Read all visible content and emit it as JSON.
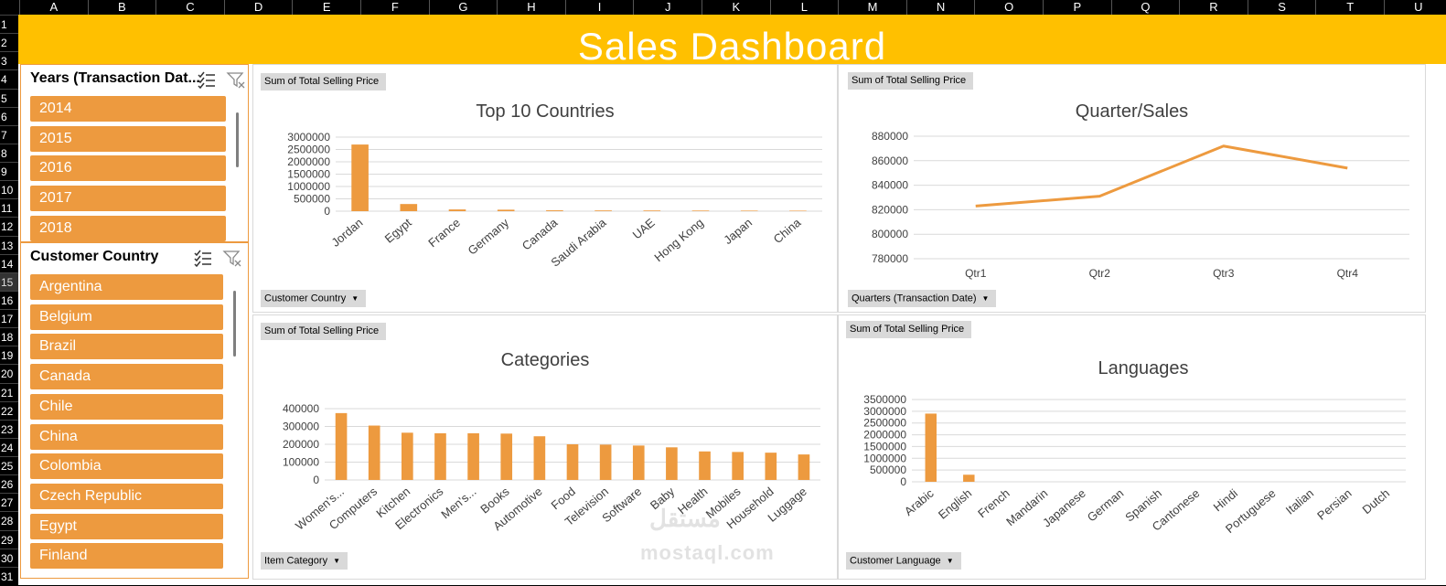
{
  "columns": [
    "A",
    "B",
    "C",
    "D",
    "E",
    "F",
    "G",
    "H",
    "I",
    "J",
    "K",
    "L",
    "M",
    "N",
    "O",
    "P",
    "Q",
    "R",
    "S",
    "T",
    "U"
  ],
  "rows": [
    "1",
    "2",
    "3",
    "4",
    "5",
    "6",
    "7",
    "8",
    "9",
    "10",
    "11",
    "12",
    "13",
    "14",
    "15",
    "16",
    "17",
    "18",
    "19",
    "20",
    "21",
    "22",
    "23",
    "24",
    "25",
    "26",
    "27",
    "28",
    "29",
    "30",
    "31"
  ],
  "dashboard": {
    "title": "Sales Dashboard",
    "accent": "#FFC000",
    "bar_color": "#ED9A3F"
  },
  "slicers": {
    "years": {
      "title": "Years (Transaction Dat...",
      "items": [
        "2014",
        "2015",
        "2016",
        "2017",
        "2018"
      ]
    },
    "country": {
      "title": "Customer Country",
      "items": [
        "Argentina",
        "Belgium",
        "Brazil",
        "Canada",
        "Chile",
        "China",
        "Colombia",
        "Czech Republic",
        "Egypt",
        "Finland"
      ]
    }
  },
  "panels": {
    "countries": {
      "value_button": "Sum of Total Selling Price",
      "field_button": "Customer Country"
    },
    "quarters": {
      "value_button": "Sum of Total Selling Price",
      "field_button": "Quarters (Transaction Date)"
    },
    "categories": {
      "value_button": "Sum of Total Selling Price",
      "field_button": "Item Category"
    },
    "languages": {
      "value_button": "Sum of Total Selling Price",
      "field_button": "Customer Language"
    }
  },
  "watermark": {
    "arabic": "مستقل",
    "latin": "mostaql.com"
  },
  "chart_data": [
    {
      "id": "countries",
      "type": "bar",
      "title": "Top 10 Countries",
      "categories": [
        "Jordan",
        "Egypt",
        "France",
        "Germany",
        "Canada",
        "Saudi Arabia",
        "UAE",
        "Hong Kong",
        "Japan",
        "China"
      ],
      "values": [
        2700000,
        290000,
        70000,
        60000,
        35000,
        30000,
        28000,
        25000,
        22000,
        20000
      ],
      "yticks": [
        0,
        500000,
        1000000,
        1500000,
        2000000,
        2500000,
        3000000
      ],
      "ylim": [
        0,
        3000000
      ]
    },
    {
      "id": "quarters",
      "type": "line",
      "title": "Quarter/Sales",
      "categories": [
        "Qtr1",
        "Qtr2",
        "Qtr3",
        "Qtr4"
      ],
      "values": [
        823000,
        831000,
        872000,
        854000
      ],
      "yticks": [
        780000,
        800000,
        820000,
        840000,
        860000,
        880000
      ],
      "ylim": [
        780000,
        880000
      ]
    },
    {
      "id": "categories",
      "type": "bar",
      "title": "Categories",
      "categories": [
        "Women's...",
        "Computers",
        "Kitchen",
        "Electronics",
        "Men's...",
        "Books",
        "Automotive",
        "Food",
        "Television",
        "Software",
        "Baby",
        "Health",
        "Mobiles",
        "Household",
        "Luggage"
      ],
      "values": [
        375000,
        305000,
        265000,
        262000,
        262000,
        260000,
        245000,
        200000,
        198000,
        193000,
        183000,
        160000,
        157000,
        153000,
        143000
      ],
      "yticks": [
        0,
        100000,
        200000,
        300000,
        400000
      ],
      "ylim": [
        0,
        400000
      ]
    },
    {
      "id": "languages",
      "type": "bar",
      "title": "Languages",
      "categories": [
        "Arabic",
        "English",
        "French",
        "Mandarin",
        "Japanese",
        "German",
        "Spanish",
        "Cantonese",
        "Hindi",
        "Portuguese",
        "Italian",
        "Persian",
        "Dutch"
      ],
      "values": [
        2900000,
        300000,
        0,
        0,
        0,
        0,
        0,
        0,
        0,
        0,
        0,
        0,
        0
      ],
      "yticks": [
        0,
        500000,
        1000000,
        1500000,
        2000000,
        2500000,
        3000000,
        3500000
      ],
      "ylim": [
        0,
        3500000
      ]
    }
  ]
}
